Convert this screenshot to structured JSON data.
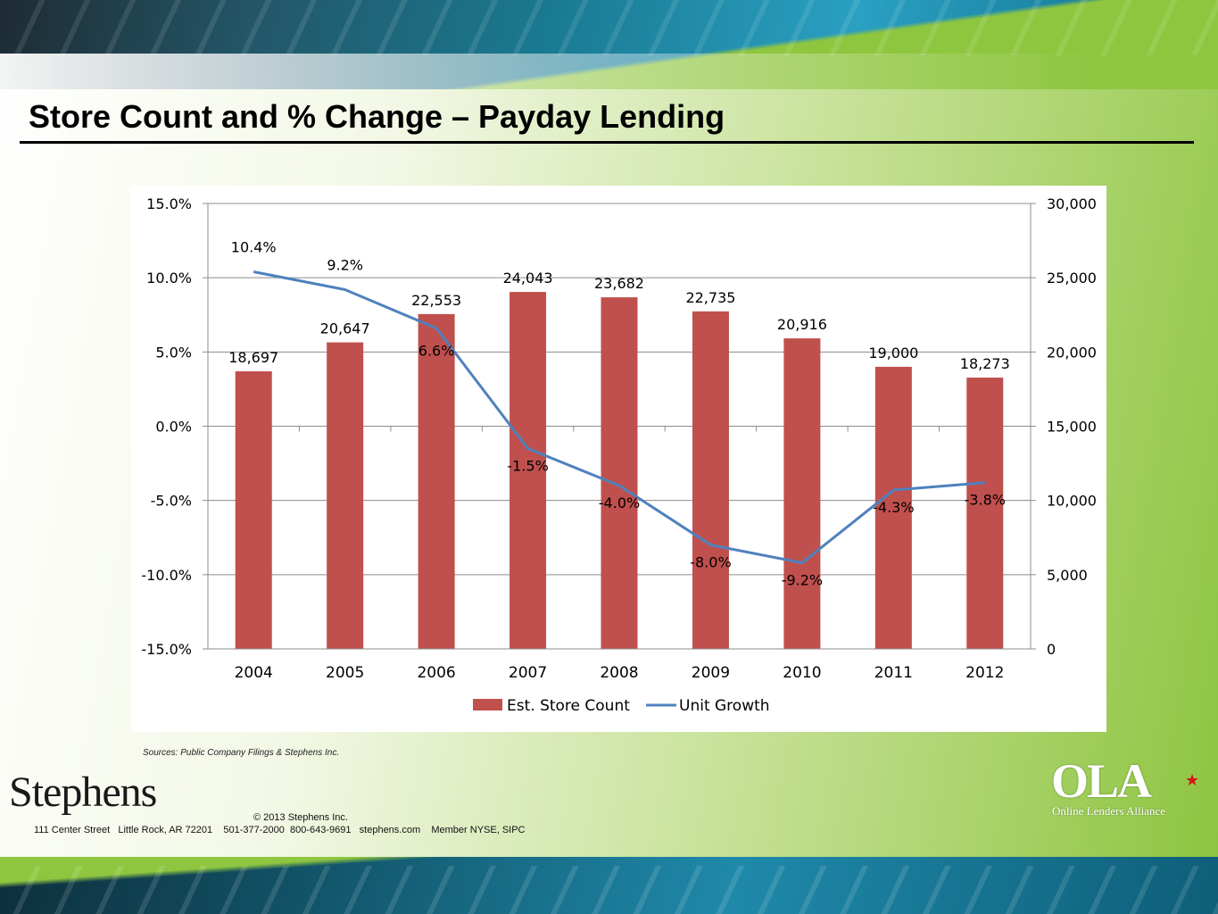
{
  "slide": {
    "title": "Store Count and % Change – Payday Lending",
    "sources": "Sources:  Public Company Filings & Stephens Inc.",
    "footer": {
      "logo_text": "Stephens",
      "copyright": "© 2013 Stephens Inc.",
      "address": "111 Center Street   Little Rock, AR 72201    501-377-2000  800-643-9691   stephens.com    Member NYSE, SIPC"
    },
    "partner_logo": {
      "mark": "OLA",
      "tagline": "Online Lenders Alliance",
      "accent_color": "#d6141b"
    }
  },
  "chart_data": {
    "type": "bar",
    "title": "",
    "categories": [
      "2004",
      "2005",
      "2006",
      "2007",
      "2008",
      "2009",
      "2010",
      "2011",
      "2012"
    ],
    "series": [
      {
        "name": "Est. Store Count",
        "type": "bar",
        "axis": "right",
        "color": "#c0504d",
        "values": [
          18697,
          20647,
          22553,
          24043,
          23682,
          22735,
          20916,
          19000,
          18273
        ],
        "labels": [
          "18,697",
          "20,647",
          "22,553",
          "24,043",
          "23,682",
          "22,735",
          "20,916",
          "19,000",
          "18,273"
        ]
      },
      {
        "name": "Unit Growth",
        "type": "line",
        "axis": "left",
        "color": "#4f81bd",
        "values": [
          10.4,
          9.2,
          6.6,
          -1.5,
          -4.0,
          -8.0,
          -9.2,
          -4.3,
          -3.8
        ],
        "labels": [
          "10.4%",
          "9.2%",
          "6.6%",
          "-1.5%",
          "-4.0%",
          "-8.0%",
          "-9.2%",
          "-4.3%",
          "-3.8%"
        ]
      }
    ],
    "y_left": {
      "range": [
        -15,
        15
      ],
      "ticks": [
        "15.0%",
        "10.0%",
        "5.0%",
        "0.0%",
        "-5.0%",
        "-10.0%",
        "-15.0%"
      ]
    },
    "y_right": {
      "range": [
        0,
        30000
      ],
      "ticks": [
        "30,000",
        "25,000",
        "20,000",
        "15,000",
        "10,000",
        "5,000",
        "0"
      ]
    },
    "grid": true,
    "legend": "bottom"
  }
}
